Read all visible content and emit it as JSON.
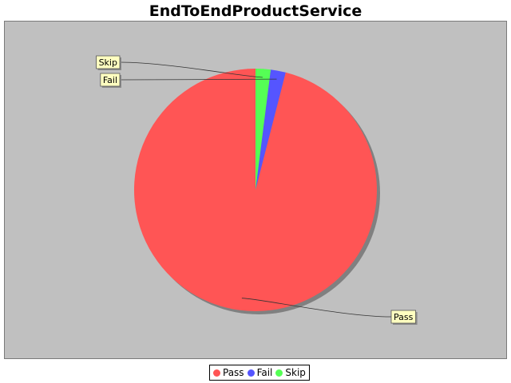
{
  "chart_data": {
    "type": "pie",
    "title": "EndToEndProductService",
    "categories": [
      "Pass",
      "Fail",
      "Skip"
    ],
    "values": [
      96,
      2,
      2
    ],
    "colors": [
      "#ff5555",
      "#5555ff",
      "#55ff55"
    ],
    "background": "#c0c0c0",
    "label_box_color": "#ffffc0",
    "legend_position": "bottom-center"
  }
}
